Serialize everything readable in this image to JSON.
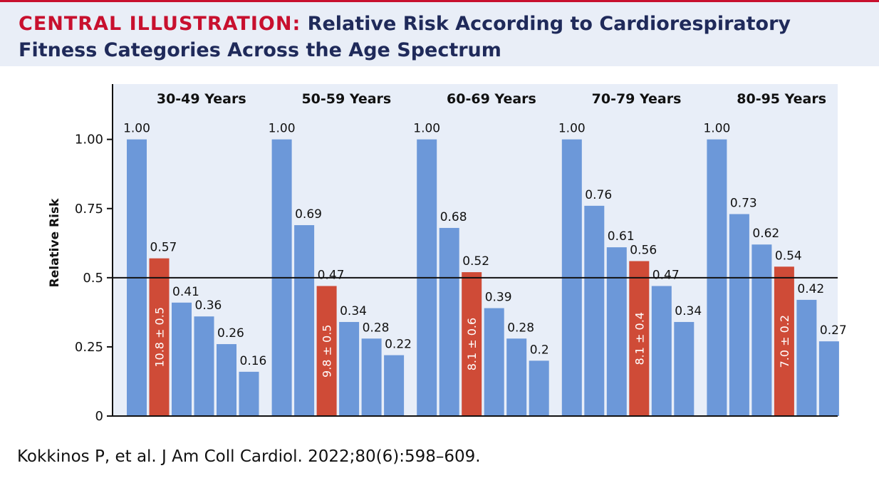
{
  "header": {
    "label": "CENTRAL ILLUSTRATION:",
    "title_line1": "Relative Risk According to Cardiorespiratory",
    "title_line2": "Fitness Categories Across the Age Spectrum"
  },
  "citation": "Kokkinos P, et al. J Am Coll Cardiol. 2022;80(6):598–609.",
  "colors": {
    "bar_blue": "#6c98d9",
    "bar_red": "#cf4b37",
    "plot_bg": "#e8eef8",
    "header_bg": "#e9eef7",
    "title_red": "#c8102e",
    "title_navy": "#1f2a5a"
  },
  "chart_data": {
    "type": "bar",
    "ylabel": "Relative Risk",
    "ylim": [
      0,
      1.2
    ],
    "yticks": [
      0,
      0.25,
      0.5,
      0.75,
      1.0
    ],
    "ytick_labels": [
      "0",
      "0.25",
      "0.5",
      "0.75",
      "1.00"
    ],
    "reference_line": 0.5,
    "grid": false,
    "groups": [
      {
        "label": "30-49 Years",
        "values": [
          1.0,
          0.57,
          0.41,
          0.36,
          0.26,
          0.16
        ],
        "value_labels": [
          "1.00",
          "0.57",
          "0.41",
          "0.36",
          "0.26",
          "0.16"
        ],
        "highlight_index": 1,
        "highlight_text": "10.8 ± 0.5"
      },
      {
        "label": "50-59 Years",
        "values": [
          1.0,
          0.69,
          0.47,
          0.34,
          0.28,
          0.22
        ],
        "value_labels": [
          "1.00",
          "0.69",
          "0.47",
          "0.34",
          "0.28",
          "0.22"
        ],
        "highlight_index": 2,
        "highlight_text": "9.8 ± 0.5"
      },
      {
        "label": "60-69 Years",
        "values": [
          1.0,
          0.68,
          0.52,
          0.39,
          0.28,
          0.2
        ],
        "value_labels": [
          "1.00",
          "0.68",
          "0.52",
          "0.39",
          "0.28",
          "0.2"
        ],
        "highlight_index": 2,
        "highlight_text": "8.1 ± 0.6"
      },
      {
        "label": "70-79 Years",
        "values": [
          1.0,
          0.76,
          0.61,
          0.56,
          0.47,
          0.34
        ],
        "value_labels": [
          "1.00",
          "0.76",
          "0.61",
          "0.56",
          "0.47",
          "0.34"
        ],
        "highlight_index": 3,
        "highlight_text": "8.1 ± 0.4"
      },
      {
        "label": "80-95 Years",
        "values": [
          1.0,
          0.73,
          0.62,
          0.54,
          0.42,
          0.27
        ],
        "value_labels": [
          "1.00",
          "0.73",
          "0.62",
          "0.54",
          "0.42",
          "0.27"
        ],
        "highlight_index": 3,
        "highlight_text": "7.0 ± 0.2"
      }
    ]
  }
}
